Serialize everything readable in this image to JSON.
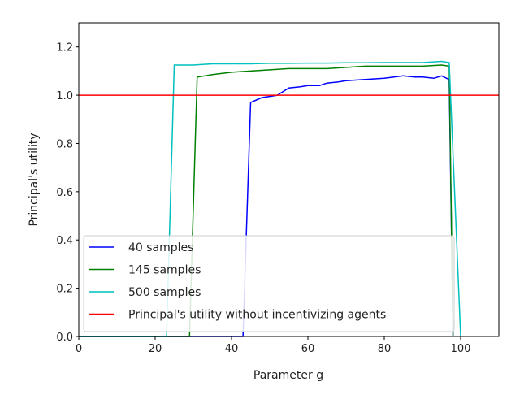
{
  "chart_data": {
    "type": "line",
    "title": "",
    "xlabel": "Parameter g",
    "ylabel": "Principal's utility",
    "xlim": [
      0,
      110
    ],
    "ylim": [
      0,
      1.3
    ],
    "xticks": [
      0,
      20,
      40,
      60,
      80,
      100
    ],
    "yticks": [
      0.0,
      0.2,
      0.4,
      0.6,
      0.8,
      1.0,
      1.2
    ],
    "grid": false,
    "legend_position": "lower-left",
    "series": [
      {
        "name": "40 samples",
        "color": "#0000ff",
        "x": [
          0,
          43,
          45,
          48,
          50,
          52,
          55,
          58,
          60,
          63,
          65,
          68,
          70,
          75,
          80,
          85,
          88,
          90,
          93,
          95,
          97,
          98
        ],
        "y": [
          0,
          0,
          0.97,
          0.99,
          0.995,
          1.0,
          1.03,
          1.035,
          1.04,
          1.04,
          1.05,
          1.055,
          1.06,
          1.065,
          1.07,
          1.08,
          1.075,
          1.075,
          1.07,
          1.08,
          1.065,
          0
        ]
      },
      {
        "name": "145 samples",
        "color": "#008000",
        "x": [
          0,
          29,
          31,
          35,
          40,
          45,
          50,
          55,
          60,
          65,
          70,
          75,
          80,
          85,
          90,
          95,
          97,
          98
        ],
        "y": [
          0,
          0,
          1.075,
          1.085,
          1.095,
          1.1,
          1.105,
          1.11,
          1.11,
          1.11,
          1.115,
          1.12,
          1.12,
          1.12,
          1.12,
          1.125,
          1.12,
          0
        ]
      },
      {
        "name": "500 samples",
        "color": "#00bfbf",
        "x": [
          0,
          23,
          25,
          30,
          35,
          40,
          45,
          50,
          55,
          60,
          65,
          70,
          75,
          80,
          85,
          90,
          95,
          97,
          100
        ],
        "y": [
          0,
          0,
          1.125,
          1.125,
          1.13,
          1.13,
          1.13,
          1.132,
          1.132,
          1.133,
          1.133,
          1.134,
          1.134,
          1.135,
          1.135,
          1.135,
          1.14,
          1.135,
          0
        ]
      },
      {
        "name": "Principal's utility without incentivizing agents",
        "color": "#ff0000",
        "x": [
          0,
          110
        ],
        "y": [
          1.0,
          1.0
        ]
      }
    ]
  }
}
